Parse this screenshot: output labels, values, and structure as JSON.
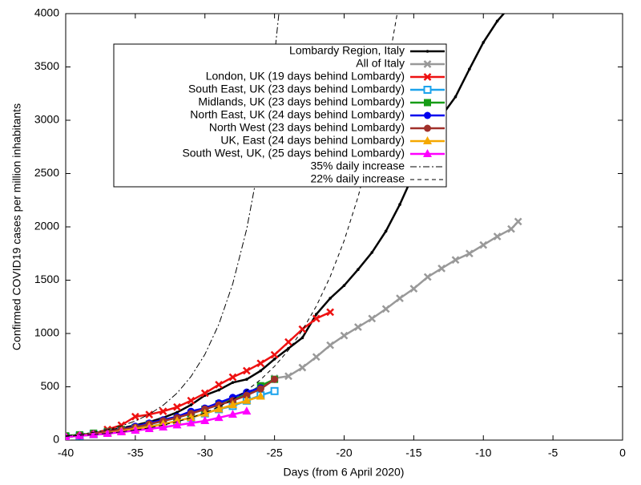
{
  "chart_data": {
    "type": "line",
    "xlabel": "Days (from 6 April 2020)",
    "ylabel": "Confirmed COVID19 cases per million inhabitants",
    "xlim": [
      -40,
      0
    ],
    "xticks": [
      -40,
      -35,
      -30,
      -25,
      -20,
      -15,
      -10,
      -5,
      0
    ],
    "ylim": [
      0,
      4000
    ],
    "yticks": [
      0,
      500,
      1000,
      1500,
      2000,
      2500,
      3000,
      3500,
      4000
    ],
    "grid": false,
    "legend": "top-right",
    "series": [
      {
        "name": "Lombardy Region, Italy",
        "color": "#000000",
        "marker": "dot",
        "x": [
          -40,
          -39,
          -38,
          -37,
          -36,
          -35,
          -34,
          -33,
          -32,
          -31,
          -30,
          -29,
          -28,
          -27,
          -26,
          -25,
          -24,
          -23,
          -22,
          -21,
          -20,
          -19,
          -18,
          -17,
          -16,
          -15,
          -14,
          -13,
          -12,
          -11,
          -10,
          -9,
          -8
        ],
        "values": [
          30,
          40,
          60,
          90,
          110,
          140,
          170,
          210,
          260,
          330,
          420,
          470,
          540,
          570,
          650,
          760,
          860,
          960,
          1180,
          1330,
          1450,
          1600,
          1760,
          1960,
          2210,
          2500,
          2800,
          3040,
          3220,
          3480,
          3730,
          3930,
          4080
        ]
      },
      {
        "name": "All of Italy",
        "color": "#999999",
        "marker": "x",
        "x": [
          -25,
          -24,
          -23,
          -22,
          -21,
          -20,
          -19,
          -18,
          -17,
          -16,
          -15,
          -14,
          -13,
          -12,
          -11,
          -10,
          -9,
          -8,
          -7.5
        ],
        "values": [
          580,
          600,
          680,
          780,
          890,
          980,
          1060,
          1140,
          1230,
          1330,
          1420,
          1530,
          1610,
          1690,
          1750,
          1830,
          1910,
          1980,
          2050
        ]
      },
      {
        "name": "London, UK (19 days behind Lombardy)",
        "color": "#ee1111",
        "marker": "x",
        "x": [
          -40,
          -39,
          -38,
          -37,
          -36,
          -35,
          -34,
          -33,
          -32,
          -31,
          -30,
          -29,
          -28,
          -27,
          -26,
          -25,
          -24,
          -23,
          -22,
          -21
        ],
        "values": [
          30,
          40,
          60,
          100,
          140,
          220,
          240,
          270,
          310,
          370,
          440,
          520,
          590,
          650,
          720,
          800,
          920,
          1040,
          1140,
          1200
        ]
      },
      {
        "name": "South East, UK (23 days behind Lombardy)",
        "color": "#1ca3ec",
        "marker": "opensquare",
        "x": [
          -40,
          -39,
          -38,
          -37,
          -36,
          -35,
          -34,
          -33,
          -32,
          -31,
          -30,
          -29,
          -28,
          -27,
          -26,
          -25
        ],
        "values": [
          30,
          40,
          55,
          70,
          90,
          110,
          130,
          150,
          180,
          210,
          250,
          290,
          320,
          370,
          420,
          460
        ]
      },
      {
        "name": "Midlands, UK (23 days behind Lombardy)",
        "color": "#169c16",
        "marker": "square",
        "x": [
          -40,
          -39,
          -38,
          -37,
          -36,
          -35,
          -34,
          -33,
          -32,
          -31,
          -30,
          -29,
          -28,
          -27,
          -26,
          -25
        ],
        "values": [
          40,
          50,
          65,
          80,
          100,
          120,
          150,
          180,
          210,
          250,
          290,
          340,
          380,
          430,
          510,
          570
        ]
      },
      {
        "name": "North East, UK (24 days behind Lombardy)",
        "color": "#0000ee",
        "marker": "circle",
        "x": [
          -40,
          -39,
          -38,
          -37,
          -36,
          -35,
          -34,
          -33,
          -32,
          -31,
          -30,
          -29,
          -28,
          -27,
          -26
        ],
        "values": [
          30,
          40,
          60,
          80,
          100,
          130,
          160,
          190,
          220,
          270,
          300,
          350,
          400,
          450,
          490
        ]
      },
      {
        "name": "North West (23 days behind Lombardy)",
        "color": "#a0302a",
        "marker": "circle",
        "x": [
          -40,
          -39,
          -38,
          -37,
          -36,
          -35,
          -34,
          -33,
          -32,
          -31,
          -30,
          -29,
          -28,
          -27,
          -26,
          -25
        ],
        "values": [
          30,
          45,
          60,
          80,
          100,
          120,
          150,
          180,
          210,
          250,
          290,
          330,
          370,
          420,
          480,
          570
        ]
      },
      {
        "name": "UK, East (24 days behind Lombardy)",
        "color": "#f5a800",
        "marker": "triangle",
        "x": [
          -40,
          -39,
          -38,
          -37,
          -36,
          -35,
          -34,
          -33,
          -32,
          -31,
          -30,
          -29,
          -28,
          -27,
          -26
        ],
        "values": [
          30,
          40,
          50,
          65,
          85,
          105,
          125,
          150,
          180,
          210,
          250,
          290,
          330,
          370,
          410
        ]
      },
      {
        "name": "South West, UK, (25 days behind Lombardy)",
        "color": "#ff00ff",
        "marker": "triangle",
        "x": [
          -40,
          -39,
          -38,
          -37,
          -36,
          -35,
          -34,
          -33,
          -32,
          -31,
          -30,
          -29,
          -28,
          -27
        ],
        "values": [
          30,
          40,
          50,
          60,
          75,
          90,
          105,
          120,
          140,
          160,
          180,
          210,
          240,
          270
        ]
      },
      {
        "name": "35% daily increase",
        "color": "#000000",
        "marker": "none",
        "dash": "dashdot",
        "x": [
          -40,
          -39,
          -38,
          -37,
          -36,
          -35,
          -34,
          -33,
          -32,
          -31,
          -30,
          -29,
          -28,
          -27,
          -26,
          -25,
          -24
        ],
        "values": [
          40,
          54,
          73,
          98,
          133,
          179,
          242,
          327,
          441,
          596,
          804,
          1086,
          1466,
          1979,
          2672,
          3607,
          4869
        ]
      },
      {
        "name": "22% daily increase",
        "color": "#000000",
        "marker": "none",
        "dash": "dashed",
        "x": [
          -40,
          -39,
          -38,
          -37,
          -36,
          -35,
          -34,
          -33,
          -32,
          -31,
          -30,
          -29,
          -28,
          -27,
          -26,
          -25,
          -24,
          -23,
          -22,
          -21,
          -20,
          -19,
          -18,
          -17,
          -16
        ],
        "values": [
          35,
          43,
          52,
          64,
          78,
          95,
          115,
          141,
          172,
          210,
          256,
          312,
          381,
          465,
          567,
          692,
          844,
          1030,
          1256,
          1533,
          1870,
          2281,
          2783,
          3395,
          4142
        ]
      }
    ]
  }
}
